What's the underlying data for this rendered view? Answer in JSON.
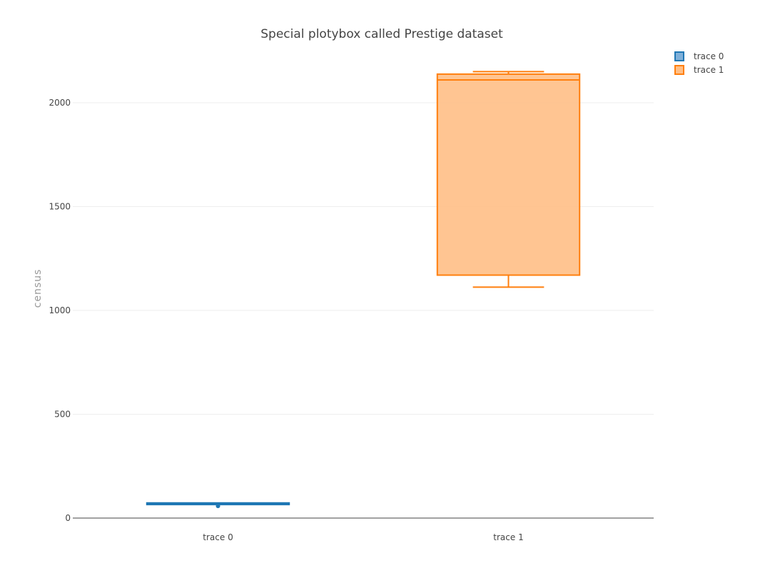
{
  "chart_data": {
    "type": "box",
    "title": "Special plotybox called Prestige dataset",
    "xlabel": "",
    "ylabel": "census",
    "categories": [
      "trace 0",
      "trace 1"
    ],
    "ylim": [
      0,
      2220
    ],
    "yticks": [
      0,
      500,
      1000,
      1500,
      2000
    ],
    "grid": true,
    "legend_position": "top-right",
    "series": [
      {
        "name": "trace 0",
        "color": "#1f77b4",
        "fill": "#7fb0d9",
        "q1": 65,
        "median": 69,
        "q3": 73,
        "lower_fence": 69,
        "upper_fence": 71,
        "outliers": [
          58
        ]
      },
      {
        "name": "trace 1",
        "color": "#ff7f0e",
        "fill": "#ffbf86",
        "q1": 1170,
        "median": 2110,
        "q3": 2138,
        "lower_fence": 1112,
        "upper_fence": 2150,
        "outliers": []
      }
    ]
  }
}
